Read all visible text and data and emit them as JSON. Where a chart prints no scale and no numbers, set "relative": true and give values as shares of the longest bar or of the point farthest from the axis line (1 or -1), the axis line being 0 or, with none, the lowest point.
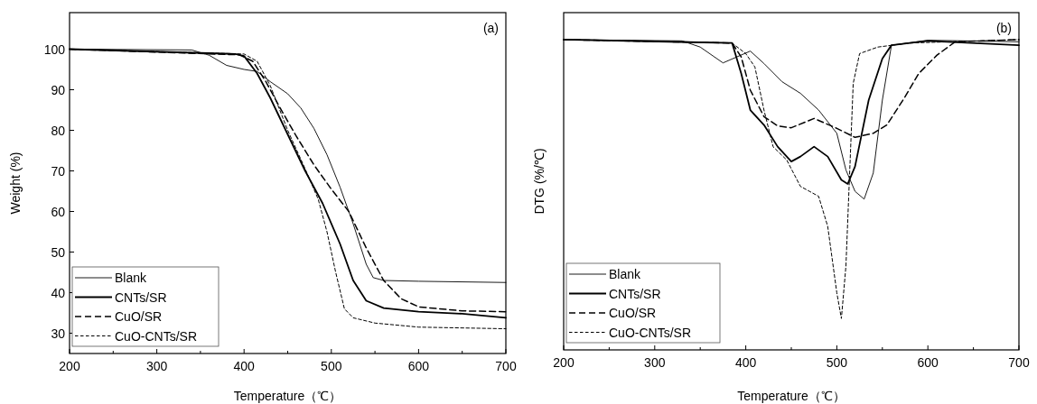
{
  "chart_data": [
    {
      "type": "line",
      "annotations": [
        "(a)"
      ],
      "xlabel": "Temperature（℃）",
      "ylabel": "Weight (%)",
      "xlim": [
        200,
        700
      ],
      "xticks": [
        200,
        300,
        400,
        500,
        600,
        700
      ],
      "ylim": [
        25,
        109
      ],
      "yticks": [
        30,
        40,
        50,
        60,
        70,
        80,
        90,
        100
      ],
      "legend": "bottom left",
      "series": [
        {
          "name": "Blank",
          "color": "#000000",
          "line_style": "solid",
          "x": [
            200,
            340,
            360,
            380,
            400,
            415,
            430,
            450,
            465,
            480,
            495,
            510,
            525,
            540,
            548,
            560,
            600,
            700
          ],
          "values": [
            100,
            99.8,
            98.5,
            96,
            95,
            94.5,
            92,
            89,
            85.5,
            80.5,
            74,
            66,
            57,
            47,
            43.7,
            43,
            42.8,
            42.5
          ]
        },
        {
          "name": "CNTs/SR",
          "color": "#000000",
          "line_style": "solid",
          "x": [
            200,
            390,
            400,
            415,
            430,
            450,
            470,
            490,
            510,
            525,
            540,
            560,
            600,
            650,
            700
          ],
          "values": [
            100,
            98.8,
            98.3,
            94,
            88,
            79,
            70,
            62,
            52,
            43,
            38,
            36.2,
            35.3,
            34.8,
            33.8
          ]
        },
        {
          "name": "CuO/SR",
          "color": "#000000",
          "line_style": "dashed",
          "x": [
            200,
            395,
            410,
            425,
            440,
            460,
            480,
            500,
            520,
            540,
            560,
            580,
            600,
            650,
            700
          ],
          "values": [
            100,
            98.6,
            97,
            92,
            86,
            78.5,
            71.5,
            65.5,
            60,
            51,
            43,
            38.5,
            36.5,
            35.5,
            35.3
          ]
        },
        {
          "name": "CuO-CNTs/SR",
          "color": "#000000",
          "line_style": "dashed",
          "x": [
            200,
            400,
            415,
            430,
            450,
            470,
            485,
            495,
            505,
            515,
            525,
            550,
            600,
            700
          ],
          "values": [
            100,
            98.8,
            97,
            91,
            80,
            70.5,
            63,
            55,
            45,
            36,
            33.8,
            32.5,
            31.5,
            31.1
          ]
        }
      ]
    },
    {
      "type": "line",
      "relative": true,
      "annotations": [
        "(b)"
      ],
      "xlabel": "Temperature（℃）",
      "ylabel": "DTG (%/℃)",
      "xlim": [
        200,
        700
      ],
      "xticks": [
        200,
        300,
        400,
        500,
        600,
        700
      ],
      "legend": "bottom left",
      "series": [
        {
          "name": "Blank",
          "color": "#000000",
          "line_style": "solid",
          "x": [
            200,
            330,
            350,
            375,
            390,
            405,
            420,
            440,
            460,
            480,
            500,
            510,
            520,
            530,
            540,
            550,
            560,
            600,
            700
          ],
          "values": [
            1,
            0.996,
            0.976,
            0.925,
            0.944,
            0.963,
            0.923,
            0.864,
            0.827,
            0.773,
            0.698,
            0.58,
            0.511,
            0.486,
            0.57,
            0.805,
            0.982,
            0.998,
            0.993
          ]
        },
        {
          "name": "CNTs/SR",
          "color": "#000000",
          "line_style": "solid",
          "x": [
            200,
            385,
            395,
            405,
            420,
            435,
            450,
            460,
            475,
            490,
            505,
            512,
            520,
            535,
            550,
            560,
            600,
            700
          ],
          "values": [
            1,
            0.989,
            0.891,
            0.773,
            0.725,
            0.655,
            0.607,
            0.623,
            0.655,
            0.623,
            0.548,
            0.535,
            0.591,
            0.805,
            0.939,
            0.982,
            0.996,
            0.982
          ]
        },
        {
          "name": "CuO/SR",
          "color": "#000000",
          "line_style": "dashed",
          "x": [
            200,
            385,
            395,
            405,
            420,
            435,
            450,
            475,
            500,
            520,
            540,
            555,
            575,
            590,
            610,
            630,
            700
          ],
          "values": [
            1,
            0.989,
            0.944,
            0.837,
            0.752,
            0.722,
            0.716,
            0.746,
            0.714,
            0.685,
            0.698,
            0.725,
            0.816,
            0.891,
            0.95,
            0.993,
            1
          ]
        },
        {
          "name": "CuO-CNTs/SR",
          "color": "#000000",
          "line_style": "dashed",
          "x": [
            200,
            385,
            400,
            410,
            420,
            430,
            445,
            460,
            470,
            480,
            490,
            500,
            505,
            510,
            518,
            525,
            545,
            580,
            700
          ],
          "values": [
            1,
            0.989,
            0.955,
            0.912,
            0.773,
            0.655,
            0.612,
            0.527,
            0.511,
            0.495,
            0.398,
            0.184,
            0.101,
            0.27,
            0.859,
            0.955,
            0.976,
            0.989,
            1
          ]
        }
      ]
    }
  ]
}
